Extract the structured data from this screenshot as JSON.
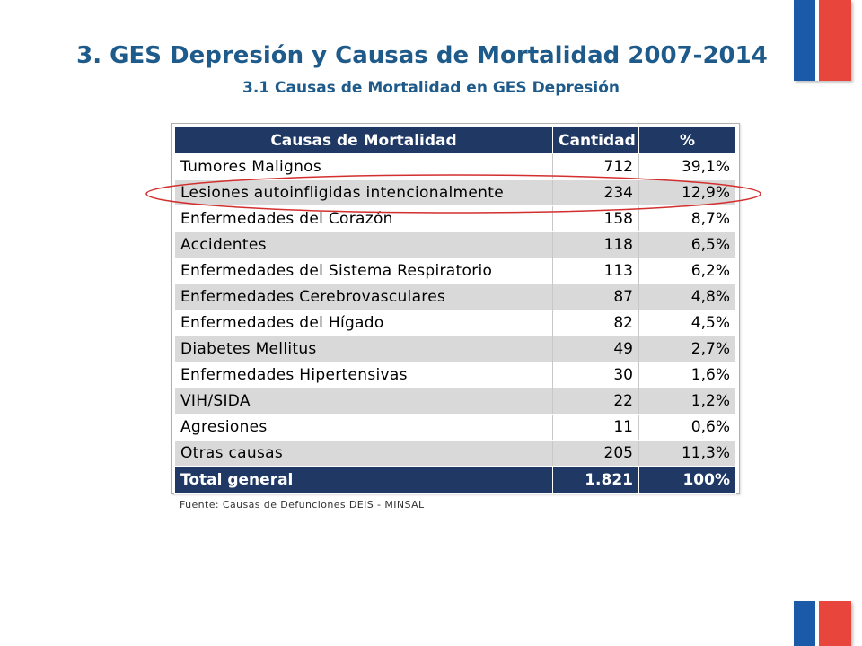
{
  "header": {
    "title": "3. GES Depresión y Causas de Mortalidad 2007-2014",
    "subtitle": "3.1 Causas de Mortalidad en GES Depresión"
  },
  "colors": {
    "title": "#1e5a8a",
    "table_header": "#1f3864",
    "row_shade": "#d9d9d9",
    "highlight_ring": "#d32f2f",
    "flag_blue": "#1a5aa8",
    "flag_red": "#e8453c"
  },
  "table": {
    "headers": {
      "cause": "Causas de Mortalidad",
      "quantity": "Cantidad",
      "percent": "%"
    },
    "rows": [
      {
        "cause": "Tumores Malignos",
        "quantity": "712",
        "percent": "39,1%"
      },
      {
        "cause": "Lesiones autoinfligidas intencionalmente",
        "quantity": "234",
        "percent": "12,9%"
      },
      {
        "cause": "Enfermedades del Corazón",
        "quantity": "158",
        "percent": "8,7%"
      },
      {
        "cause": "Accidentes",
        "quantity": "118",
        "percent": "6,5%"
      },
      {
        "cause": "Enfermedades del Sistema Respiratorio",
        "quantity": "113",
        "percent": "6,2%"
      },
      {
        "cause": "Enfermedades Cerebrovasculares",
        "quantity": "87",
        "percent": "4,8%"
      },
      {
        "cause": "Enfermedades del Hígado",
        "quantity": "82",
        "percent": "4,5%"
      },
      {
        "cause": "Diabetes Mellitus",
        "quantity": "49",
        "percent": "2,7%"
      },
      {
        "cause": "Enfermedades Hipertensivas",
        "quantity": "30",
        "percent": "1,6%"
      },
      {
        "cause": "VIH/SIDA",
        "quantity": "22",
        "percent": "1,2%"
      },
      {
        "cause": "Agresiones",
        "quantity": "11",
        "percent": "0,6%"
      },
      {
        "cause": "Otras causas",
        "quantity": "205",
        "percent": "11,3%"
      }
    ],
    "total": {
      "label": "Total general",
      "quantity": "1.821",
      "percent": "100%"
    },
    "highlighted_row_index": 1
  },
  "source": "Fuente: Causas de Defunciones DEIS - MINSAL"
}
